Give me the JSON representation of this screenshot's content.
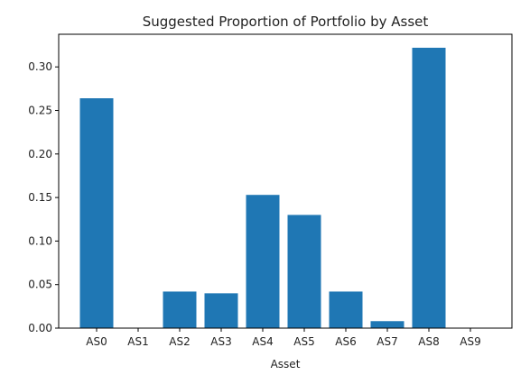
{
  "chart_data": {
    "type": "bar",
    "title": "Suggested Proportion of Portfolio by Asset",
    "xlabel": "Asset",
    "ylabel": "",
    "categories": [
      "AS0",
      "AS1",
      "AS2",
      "AS3",
      "AS4",
      "AS5",
      "AS6",
      "AS7",
      "AS8",
      "AS9"
    ],
    "values": [
      0.264,
      0.0,
      0.042,
      0.04,
      0.153,
      0.13,
      0.042,
      0.008,
      0.322,
      0.0
    ],
    "ylim": [
      0,
      0.3375
    ],
    "yticks": [
      0.0,
      0.05,
      0.1,
      0.15,
      0.2,
      0.25,
      0.3
    ],
    "ytick_labels": [
      "0.00",
      "0.05",
      "0.10",
      "0.15",
      "0.20",
      "0.25",
      "0.30"
    ],
    "grid": false,
    "legend": "none",
    "colors": {
      "bar": "#1f77b4",
      "axis": "#000000",
      "text": "#222222"
    }
  }
}
